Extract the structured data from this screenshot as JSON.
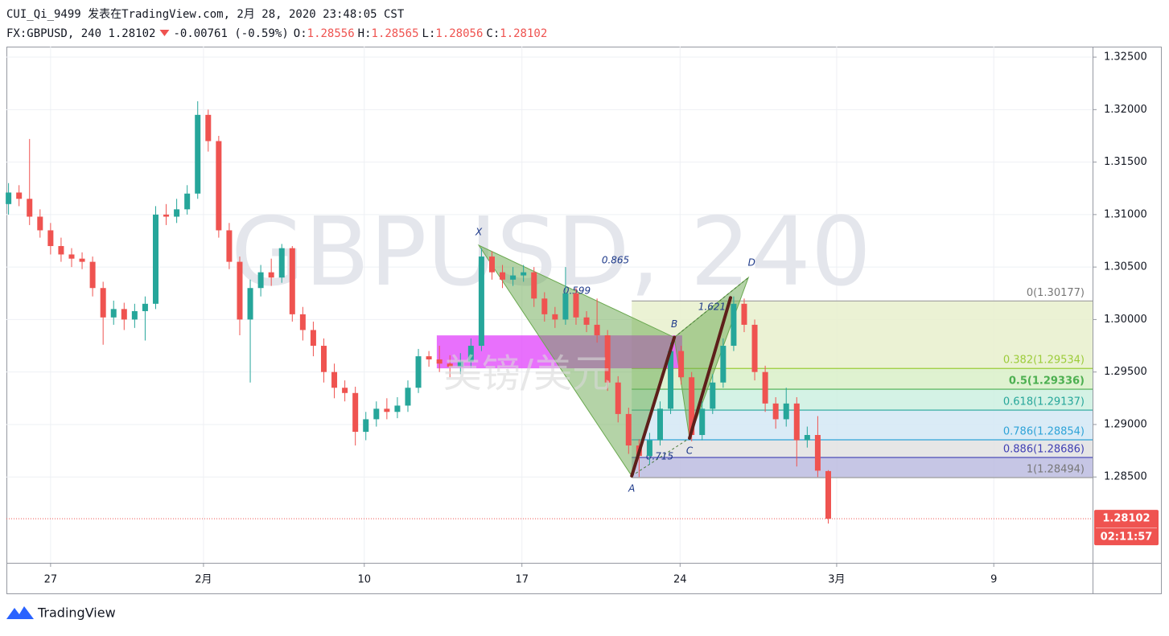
{
  "chart_data": {
    "type": "candlestick",
    "title": "CUI_Qi_9499 发表在TradingView.com, 2月 28, 2020 23:48:05 CST",
    "symbol": "FX:GBPUSD, 240",
    "last": 1.28102,
    "change": -0.00761,
    "change_pct": "(-0.59%)",
    "ohlc": [
      {
        "label": "O:",
        "value": 1.28556
      },
      {
        "label": "H:",
        "value": 1.28565
      },
      {
        "label": "L:",
        "value": 1.28056
      },
      {
        "label": "C:",
        "value": 1.28102
      }
    ],
    "countdown": "02:11:57",
    "watermark": "GBPUSD, 240",
    "watermark_sub": "美镑/美元",
    "brand": "TradingView",
    "up_color": "#26a69a",
    "down_color": "#ef5350",
    "grid": true,
    "xlim": [
      -8.4,
      198.3
    ],
    "ylim": [
      1.27682,
      1.326
    ],
    "xticks": [
      {
        "value": 0,
        "label": "27"
      },
      {
        "value": 29.1,
        "label": "2月"
      },
      {
        "value": 59.7,
        "label": "10"
      },
      {
        "value": 89.7,
        "label": "17"
      },
      {
        "value": 119.8,
        "label": "24"
      },
      {
        "value": 149.6,
        "label": "3月"
      },
      {
        "value": 179.5,
        "label": "9"
      }
    ],
    "yticks": [
      {
        "value": 1.285,
        "label": "1.28500"
      },
      {
        "value": 1.29,
        "label": "1.29000"
      },
      {
        "value": 1.295,
        "label": "1.29500"
      },
      {
        "value": 1.3,
        "label": "1.30000"
      },
      {
        "value": 1.305,
        "label": "1.30500"
      },
      {
        "value": 1.31,
        "label": "1.31000"
      },
      {
        "value": 1.315,
        "label": "1.31500"
      },
      {
        "value": 1.32,
        "label": "1.32000"
      },
      {
        "value": 1.325,
        "label": "1.32500"
      }
    ],
    "x": [
      -8,
      -6,
      -4,
      -2,
      0,
      2,
      4,
      6,
      8,
      10,
      12,
      14,
      16,
      18,
      20,
      22,
      24,
      26,
      28,
      30,
      32,
      34,
      36,
      38,
      40,
      42,
      44,
      46,
      48,
      50,
      52,
      54,
      56,
      58,
      60,
      62,
      64,
      66,
      68,
      70,
      72,
      74,
      76,
      78,
      80,
      82,
      84,
      86,
      88,
      90,
      92,
      94,
      96,
      98,
      100,
      102,
      104,
      106,
      108,
      110,
      112,
      114,
      116,
      118,
      120,
      122,
      124,
      126,
      128,
      130,
      132,
      134,
      136,
      138,
      140,
      142,
      144,
      146,
      148
    ],
    "open": [
      1.311,
      1.3121,
      1.3115,
      1.3098,
      1.3085,
      1.307,
      1.3062,
      1.3058,
      1.3055,
      1.303,
      1.3002,
      1.301,
      1.3,
      1.3008,
      1.3015,
      1.31,
      1.3098,
      1.3105,
      1.312,
      1.3195,
      1.317,
      1.3085,
      1.3055,
      1.3,
      1.303,
      1.3045,
      1.304,
      1.3068,
      1.3005,
      1.299,
      1.2975,
      1.295,
      1.2935,
      1.293,
      1.2893,
      1.2905,
      1.2915,
      1.2912,
      1.2918,
      1.2935,
      1.2965,
      1.2962,
      1.2958,
      1.2955,
      1.296,
      1.2975,
      1.306,
      1.3045,
      1.3038,
      1.3042,
      1.3045,
      1.302,
      1.3005,
      1.3,
      1.3025,
      1.3002,
      1.2995,
      1.2985,
      1.294,
      1.291,
      1.288,
      1.287,
      1.2885,
      1.2915,
      1.297,
      1.2945,
      1.289,
      1.2915,
      1.294,
      1.2975,
      1.3015,
      1.2995,
      1.295,
      1.292,
      1.2905,
      1.292,
      1.2885,
      1.289,
      1.28556
    ],
    "high": [
      1.313,
      1.3128,
      1.3172,
      1.3105,
      1.3092,
      1.3078,
      1.3068,
      1.3064,
      1.306,
      1.3036,
      1.3018,
      1.3016,
      1.3015,
      1.3022,
      1.3108,
      1.311,
      1.3115,
      1.3128,
      1.3208,
      1.32,
      1.3175,
      1.3092,
      1.306,
      1.3038,
      1.3052,
      1.3058,
      1.3072,
      1.307,
      1.3012,
      1.2998,
      1.2982,
      1.2958,
      1.2942,
      1.2936,
      1.2912,
      1.2922,
      1.2925,
      1.2926,
      1.2942,
      1.2972,
      1.297,
      1.2975,
      1.2966,
      1.2968,
      1.2982,
      1.3068,
      1.3065,
      1.3052,
      1.305,
      1.3052,
      1.305,
      1.3026,
      1.3012,
      1.305,
      1.303,
      1.3008,
      1.302,
      1.299,
      1.2946,
      1.2916,
      1.2886,
      1.2892,
      1.2922,
      1.2978,
      1.2975,
      1.295,
      1.2922,
      1.2948,
      1.2982,
      1.3022,
      1.302,
      1.3,
      1.2956,
      1.2926,
      1.2935,
      1.2926,
      1.2898,
      1.2908,
      1.28565
    ],
    "low": [
      1.31,
      1.3108,
      1.309,
      1.3078,
      1.3062,
      1.3055,
      1.305,
      1.3048,
      1.3022,
      1.2976,
      1.2995,
      1.299,
      1.2992,
      1.298,
      1.301,
      1.309,
      1.3092,
      1.31,
      1.3115,
      1.316,
      1.3078,
      1.3048,
      1.2985,
      1.294,
      1.3022,
      1.3032,
      1.3035,
      1.2998,
      1.298,
      1.2965,
      1.294,
      1.2925,
      1.2922,
      1.288,
      1.2885,
      1.2898,
      1.2905,
      1.2906,
      1.2912,
      1.293,
      1.2955,
      1.295,
      1.2945,
      1.2948,
      1.2954,
      1.297,
      1.3038,
      1.303,
      1.3032,
      1.3036,
      1.3012,
      1.2998,
      1.2992,
      1.2995,
      1.2995,
      1.2988,
      1.2978,
      1.2932,
      1.2902,
      1.2872,
      1.285,
      1.2862,
      1.288,
      1.291,
      1.2938,
      1.2884,
      1.2885,
      1.291,
      1.2935,
      1.297,
      1.2988,
      1.2942,
      1.2912,
      1.2896,
      1.2898,
      1.286,
      1.2878,
      1.285,
      1.28056
    ],
    "close": [
      1.3121,
      1.3115,
      1.3098,
      1.3085,
      1.307,
      1.3062,
      1.3058,
      1.3055,
      1.303,
      1.3002,
      1.301,
      1.3,
      1.3008,
      1.3015,
      1.31,
      1.3098,
      1.3105,
      1.312,
      1.3195,
      1.317,
      1.3085,
      1.3055,
      1.3,
      1.303,
      1.3045,
      1.304,
      1.3068,
      1.3005,
      1.299,
      1.2975,
      1.295,
      1.2935,
      1.293,
      1.2893,
      1.2905,
      1.2915,
      1.2912,
      1.2918,
      1.2935,
      1.2965,
      1.2962,
      1.2958,
      1.2955,
      1.296,
      1.2975,
      1.306,
      1.3045,
      1.3038,
      1.3042,
      1.3045,
      1.302,
      1.3005,
      1.3,
      1.3025,
      1.3002,
      1.2995,
      1.2985,
      1.294,
      1.291,
      1.288,
      1.287,
      1.2885,
      1.2915,
      1.297,
      1.2945,
      1.289,
      1.2915,
      1.294,
      1.2975,
      1.3015,
      1.2995,
      1.295,
      1.292,
      1.2905,
      1.292,
      1.2885,
      1.289,
      1.2856,
      1.28102
    ],
    "zone": {
      "x": [
        73.5,
        120.2
      ],
      "y": [
        1.29849,
        1.29535
      ],
      "color": "#e040fb"
    },
    "fib": {
      "x": [
        110.6,
        198.3
      ],
      "levels": [
        {
          "value": 1.30177,
          "label": "0(1.30177)",
          "color": "#9e9e9e",
          "fill": "#e8f0cc"
        },
        {
          "value": 1.29534,
          "label": "0.382(1.29534)",
          "color": "#9ccc3a",
          "fill": "#d9f0c8"
        },
        {
          "value": 1.29336,
          "label": "0.5(1.29336)",
          "color": "#4caf50",
          "fill": "#cdf0e0"
        },
        {
          "value": 1.29137,
          "label": "0.618(1.29137)",
          "color": "#26a69a",
          "fill": "#d3e8f5"
        },
        {
          "value": 1.28854,
          "label": "0.786(1.28854)",
          "color": "#2ea3d8",
          "fill": "#e2e2e2"
        },
        {
          "value": 1.28686,
          "label": "0.886(1.28686)",
          "color": "#3f3fb4",
          "fill": "#bcbce0"
        },
        {
          "value": 1.28494,
          "label": "1(1.28494)",
          "color": "#9e9e9e"
        }
      ]
    },
    "pattern": {
      "color": "#6aa84f",
      "points": [
        {
          "label": "X",
          "x": 81.5,
          "y": 1.30707
        },
        {
          "label": "A",
          "x": 110.6,
          "y": 1.2851
        },
        {
          "label": "B",
          "x": 118.7,
          "y": 1.2983
        },
        {
          "label": "C",
          "x": 121.6,
          "y": 1.2887
        },
        {
          "label": "D",
          "x": 132.8,
          "y": 1.304
        }
      ],
      "ratios": [
        0.865,
        0.599,
        0.715,
        1.621
      ]
    },
    "trend_lines": {
      "color": "#5d1f1a",
      "lines": [
        {
          "x": [
            110.6,
            118.7
          ],
          "y": [
            1.2851,
            1.2983
          ]
        },
        {
          "x": [
            121.6,
            129.4
          ],
          "y": [
            1.2887,
            1.30208
          ]
        }
      ]
    }
  }
}
